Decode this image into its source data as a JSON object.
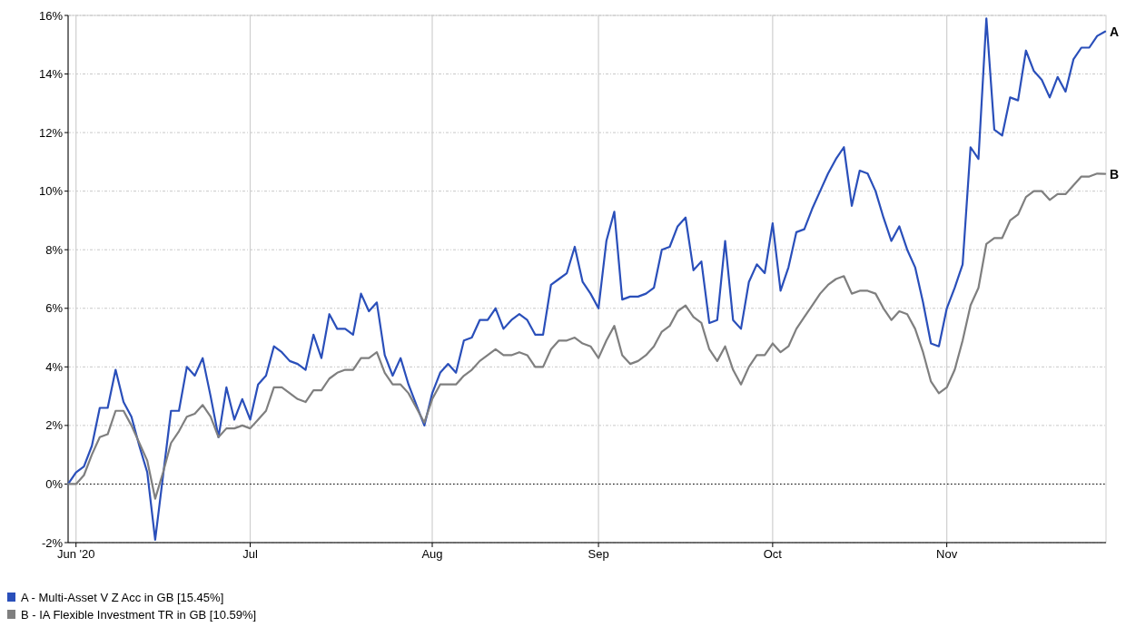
{
  "chart_data": {
    "type": "line",
    "categories": [
      null,
      "Jun '20",
      null,
      null,
      null,
      null,
      null,
      null,
      null,
      null,
      null,
      null,
      null,
      null,
      null,
      null,
      null,
      null,
      null,
      null,
      null,
      null,
      null,
      "Jul",
      null,
      null,
      null,
      null,
      null,
      null,
      null,
      null,
      null,
      null,
      null,
      null,
      null,
      null,
      null,
      null,
      null,
      null,
      null,
      null,
      null,
      null,
      "Aug",
      null,
      null,
      null,
      null,
      null,
      null,
      null,
      null,
      null,
      null,
      null,
      null,
      null,
      null,
      null,
      null,
      null,
      null,
      null,
      null,
      "Sep",
      null,
      null,
      null,
      null,
      null,
      null,
      null,
      null,
      null,
      null,
      null,
      null,
      null,
      null,
      null,
      null,
      null,
      null,
      null,
      null,
      null,
      "Oct",
      null,
      null,
      null,
      null,
      null,
      null,
      null,
      null,
      null,
      null,
      null,
      null,
      null,
      null,
      null,
      null,
      null,
      null,
      null,
      null,
      null,
      "Nov",
      null,
      null,
      null,
      null,
      null,
      null,
      null,
      null,
      null,
      null,
      null,
      null,
      null,
      null,
      null,
      null,
      null,
      null,
      null,
      null
    ],
    "series": [
      {
        "name": "A - Multi-Asset V Z Acc in GB [15.45%]",
        "color": "#2a4fba",
        "values": [
          0,
          0.4,
          0.6,
          1.3,
          2.6,
          2.6,
          3.9,
          2.8,
          2.3,
          1.3,
          0.4,
          -1.9,
          0.3,
          2.5,
          2.5,
          4.0,
          3.7,
          4.3,
          3.0,
          1.6,
          3.3,
          2.2,
          2.9,
          2.2,
          3.4,
          3.7,
          4.7,
          4.5,
          4.2,
          4.1,
          3.9,
          5.1,
          4.3,
          5.8,
          5.3,
          5.3,
          5.1,
          6.5,
          5.9,
          6.2,
          4.4,
          3.7,
          4.3,
          3.4,
          2.7,
          2.0,
          3.1,
          3.8,
          4.1,
          3.8,
          4.9,
          5.0,
          5.6,
          5.6,
          6.0,
          5.3,
          5.6,
          5.8,
          5.6,
          5.1,
          5.1,
          6.8,
          7.0,
          7.2,
          8.1,
          6.9,
          6.5,
          6.0,
          8.3,
          9.3,
          6.3,
          6.4,
          6.4,
          6.5,
          6.7,
          8.0,
          8.1,
          8.8,
          9.1,
          7.3,
          7.6,
          5.5,
          5.6,
          8.3,
          5.6,
          5.3,
          6.9,
          7.5,
          7.2,
          8.9,
          6.6,
          7.4,
          8.6,
          8.7,
          9.4,
          10.0,
          10.6,
          11.1,
          11.5,
          9.5,
          10.7,
          10.6,
          10.0,
          9.1,
          8.3,
          8.8,
          8.0,
          7.4,
          6.2,
          4.8,
          4.7,
          6.0,
          6.7,
          7.5,
          11.5,
          11.1,
          15.9,
          12.1,
          11.9,
          13.2,
          13.1,
          14.8,
          14.1,
          13.8,
          13.2,
          13.9,
          13.4,
          14.5,
          14.9,
          14.9,
          15.3,
          15.45
        ]
      },
      {
        "name": "B - IA Flexible Investment TR in GB [10.59%]",
        "color": "#7f7f7f",
        "values": [
          0,
          0,
          0.3,
          1.0,
          1.6,
          1.7,
          2.5,
          2.5,
          2.0,
          1.4,
          0.8,
          -0.5,
          0.4,
          1.4,
          1.8,
          2.3,
          2.4,
          2.7,
          2.3,
          1.6,
          1.9,
          1.9,
          2.0,
          1.9,
          2.2,
          2.5,
          3.3,
          3.3,
          3.1,
          2.9,
          2.8,
          3.2,
          3.2,
          3.6,
          3.8,
          3.9,
          3.9,
          4.3,
          4.3,
          4.5,
          3.8,
          3.4,
          3.4,
          3.1,
          2.6,
          2.1,
          2.9,
          3.4,
          3.4,
          3.4,
          3.7,
          3.9,
          4.2,
          4.4,
          4.6,
          4.4,
          4.4,
          4.5,
          4.4,
          4.0,
          4.0,
          4.6,
          4.9,
          4.9,
          5.0,
          4.8,
          4.7,
          4.3,
          4.9,
          5.4,
          4.4,
          4.1,
          4.2,
          4.4,
          4.7,
          5.2,
          5.4,
          5.9,
          6.1,
          5.7,
          5.5,
          4.6,
          4.2,
          4.7,
          3.9,
          3.4,
          4.0,
          4.4,
          4.4,
          4.8,
          4.5,
          4.7,
          5.3,
          5.7,
          6.1,
          6.5,
          6.8,
          7.0,
          7.1,
          6.5,
          6.6,
          6.6,
          6.5,
          6.0,
          5.6,
          5.9,
          5.8,
          5.3,
          4.5,
          3.5,
          3.1,
          3.3,
          3.9,
          4.9,
          6.1,
          6.7,
          8.2,
          8.4,
          8.4,
          9.0,
          9.2,
          9.8,
          10.0,
          10.0,
          9.7,
          9.9,
          9.9,
          10.2,
          10.5,
          10.5,
          10.6,
          10.59
        ]
      }
    ],
    "ylim": [
      -2,
      16
    ],
    "yticks": [
      {
        "value": -2,
        "label": "-2%"
      },
      {
        "value": 0,
        "label": "0%"
      },
      {
        "value": 2,
        "label": "2%"
      },
      {
        "value": 4,
        "label": "4%"
      },
      {
        "value": 6,
        "label": "6%"
      },
      {
        "value": 8,
        "label": "8%"
      },
      {
        "value": 10,
        "label": "10%"
      },
      {
        "value": 12,
        "label": "12%"
      },
      {
        "value": 14,
        "label": "14%"
      },
      {
        "value": 16,
        "label": "16%"
      }
    ],
    "ref_lines": [
      {
        "axis": "y",
        "value": 0,
        "color": "#000000",
        "line_style": "dotted"
      }
    ],
    "annotations": [
      "A",
      "B"
    ],
    "grid": true,
    "legend": "bottom left",
    "marker": "none",
    "line_style": "solid"
  }
}
